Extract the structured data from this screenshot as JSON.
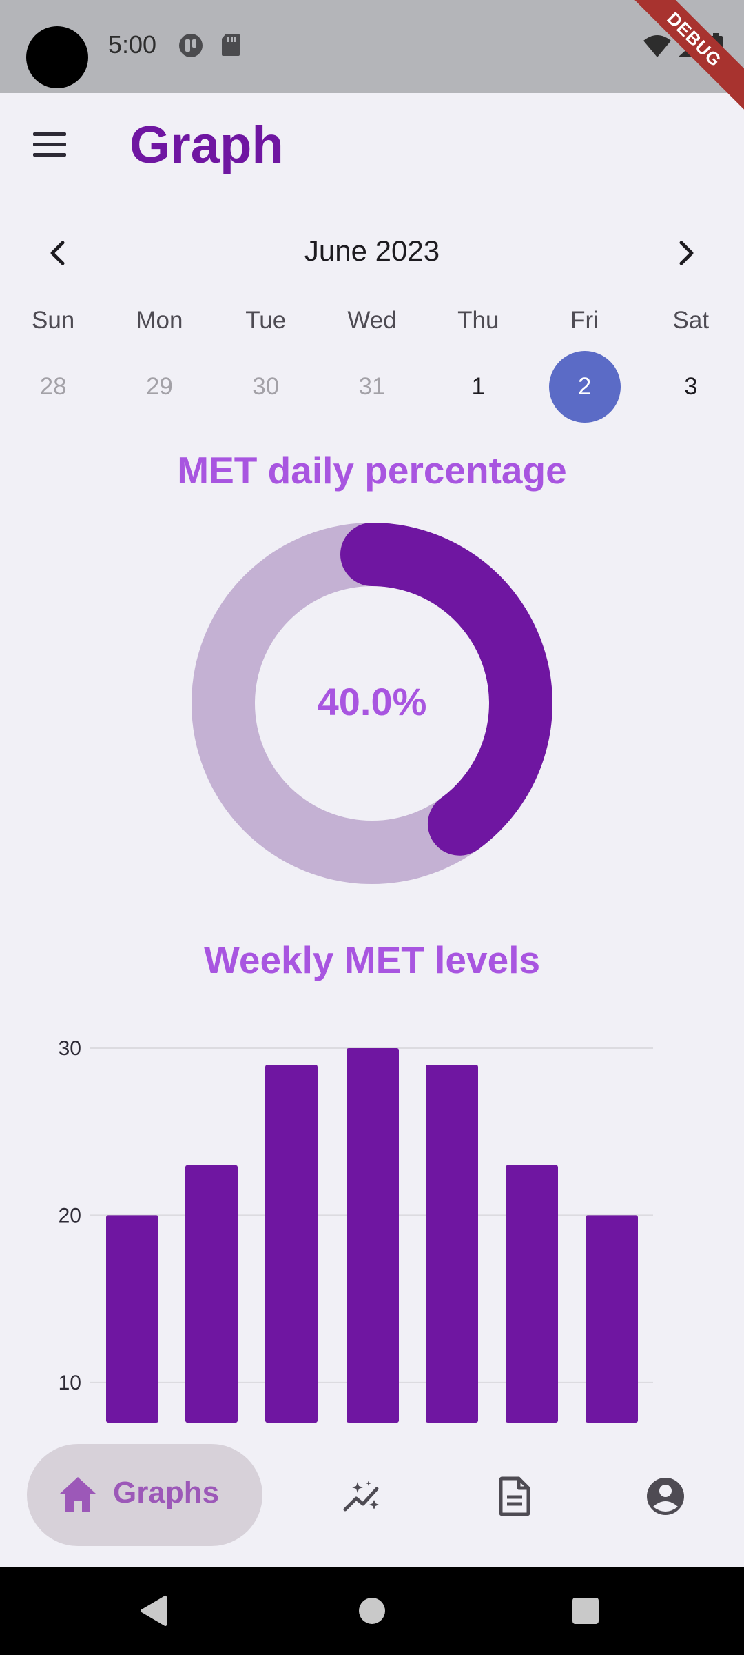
{
  "status_bar": {
    "time": "5:00",
    "debug_ribbon": "DEBUG",
    "icons": [
      "camera-cutout",
      "app-notification-icon",
      "sd-card-icon",
      "wifi-icon",
      "signal-icon",
      "battery-icon"
    ]
  },
  "app_bar": {
    "title": "Graph",
    "menu_icon": "hamburger-menu-icon"
  },
  "calendar": {
    "month_label": "June 2023",
    "prev_icon": "chevron-left-icon",
    "next_icon": "chevron-right-icon",
    "weekdays": [
      "Sun",
      "Mon",
      "Tue",
      "Wed",
      "Thu",
      "Fri",
      "Sat"
    ],
    "dates": [
      {
        "label": "28",
        "state": "outside"
      },
      {
        "label": "29",
        "state": "outside"
      },
      {
        "label": "30",
        "state": "outside"
      },
      {
        "label": "31",
        "state": "outside"
      },
      {
        "label": "1",
        "state": "current"
      },
      {
        "label": "2",
        "state": "selected"
      },
      {
        "label": "3",
        "state": "current"
      }
    ]
  },
  "met_daily": {
    "title": "MET daily percentage",
    "value_label": "40.0%",
    "percent": 40.0,
    "colors": {
      "progress": "#6f16a1",
      "track": "#c4b1d3"
    }
  },
  "weekly": {
    "title": "Weekly MET levels"
  },
  "chart_data": {
    "type": "bar",
    "categories": [
      "",
      "",
      "",
      "",
      "",
      "",
      ""
    ],
    "values": [
      20,
      23,
      29,
      30,
      29,
      23,
      20
    ],
    "title": "Weekly MET levels",
    "xlabel": "",
    "ylabel": "",
    "ytick_labels": [
      "10",
      "20",
      "30"
    ],
    "ylim": [
      7.6,
      30
    ],
    "grid": true,
    "bar_color": "#6f16a1"
  },
  "bottom_nav": {
    "items": [
      {
        "label": "Graphs",
        "icon": "home-icon",
        "active": true
      },
      {
        "label": "",
        "icon": "sparkle-chart-icon",
        "active": false
      },
      {
        "label": "",
        "icon": "document-icon",
        "active": false
      },
      {
        "label": "",
        "icon": "account-circle-icon",
        "active": false
      }
    ],
    "active_color": "#9c58b8",
    "inactive_color": "#4e4b53"
  },
  "system_nav": {
    "icons": [
      "back-icon",
      "home-circle-icon",
      "recents-icon"
    ]
  }
}
